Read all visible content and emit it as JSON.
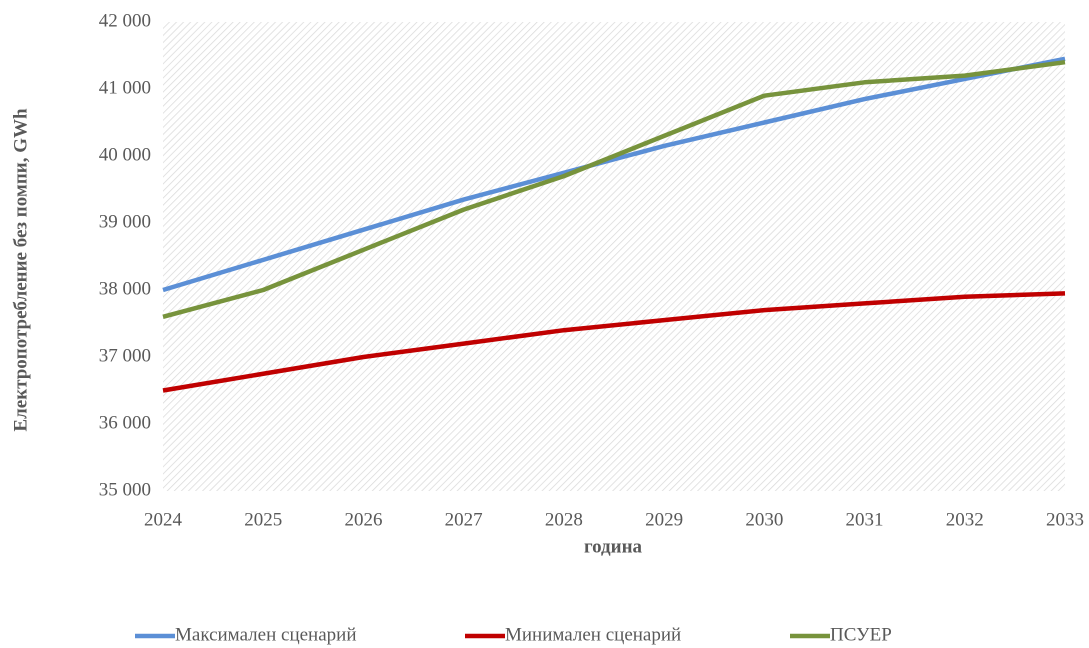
{
  "chart_data": {
    "type": "line",
    "y_label": "Електропотребление без помпи, GWh",
    "x_label": "година",
    "x": [
      2024,
      2025,
      2026,
      2027,
      2028,
      2029,
      2030,
      2031,
      2032,
      2033
    ],
    "xlim": [
      2024,
      2033
    ],
    "xticks": [
      2024,
      2025,
      2026,
      2027,
      2028,
      2029,
      2030,
      2031,
      2032,
      2033
    ],
    "ylim": [
      35000,
      42000
    ],
    "yticks": [
      {
        "value": 35000,
        "label": "35 000"
      },
      {
        "value": 36000,
        "label": "36 000"
      },
      {
        "value": 37000,
        "label": "37 000"
      },
      {
        "value": 38000,
        "label": "38 000"
      },
      {
        "value": 39000,
        "label": "39 000"
      },
      {
        "value": 40000,
        "label": "40 000"
      },
      {
        "value": 41000,
        "label": "41 000"
      },
      {
        "value": 42000,
        "label": "42 000"
      }
    ],
    "legend": "bottom",
    "series": [
      {
        "name": "Максимален сценарий",
        "color": "#5b8fd6",
        "values": [
          38000,
          38450,
          38900,
          39350,
          39750,
          40150,
          40500,
          40850,
          41150,
          41450
        ]
      },
      {
        "name": "Минимален сценарий",
        "color": "#c00000",
        "values": [
          36500,
          36750,
          37000,
          37200,
          37400,
          37550,
          37700,
          37800,
          37900,
          37950
        ]
      },
      {
        "name": "ПСУЕР",
        "color": "#77933c",
        "values": [
          37600,
          38000,
          38600,
          39200,
          39700,
          40300,
          40900,
          41100,
          41200,
          41400
        ]
      }
    ]
  }
}
